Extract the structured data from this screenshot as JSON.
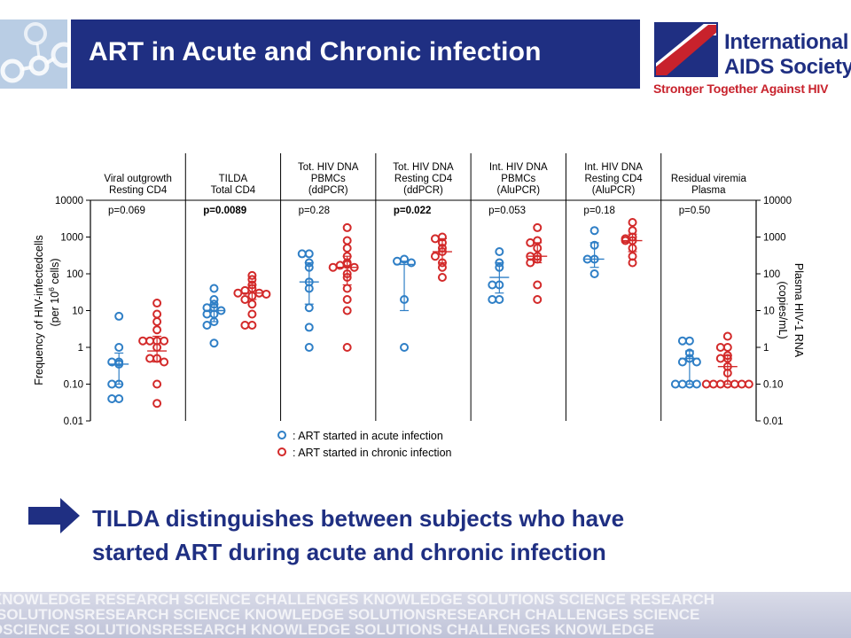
{
  "header": {
    "title": "ART in Acute and Chronic infection"
  },
  "logo": {
    "name_line1": "International",
    "name_line2": "AIDS Society",
    "tagline": "Stronger Together Against HIV",
    "colors": {
      "blue": "#1f2f82",
      "red": "#c8222c"
    }
  },
  "chart_data": {
    "type": "scatter",
    "y_scale": "log",
    "ylim": [
      0.01,
      10000
    ],
    "grid": false,
    "yticks": [
      "10000",
      "1000",
      "100",
      "10",
      "1",
      "0.10",
      "0.01"
    ],
    "ylabel_left_line1": "Frequency of HIV-infectedcells",
    "ylabel_left_line2_pre": "(per 10",
    "ylabel_left_line2_sup": "6",
    "ylabel_left_line2_post": " cells)",
    "ylabel_right_line1": "Plasma HIV-1 RNA",
    "ylabel_right_line2": "(copies/mL)",
    "series": [
      {
        "name": ": ART started in acute infection",
        "color": "#2f7fc6"
      },
      {
        "name": ": ART started in chronic infection",
        "color": "#d32a2a"
      }
    ],
    "panels": [
      {
        "header": [
          "Viral outgrowth",
          "Resting CD4"
        ],
        "p_value": "p=0.069",
        "p_bold": false,
        "acute": [
          7,
          1,
          0.4,
          0.35,
          0.1,
          0.1,
          0.04,
          0.04,
          0.4
        ],
        "acute_median": 0.35,
        "acute_iqr": [
          0.1,
          0.7
        ],
        "chronic": [
          16,
          8,
          5,
          3,
          1.5,
          1.5,
          1.5,
          1,
          0.5,
          0.5,
          0.4,
          0.1,
          0.03,
          1.5
        ],
        "chronic_median": 0.8,
        "chronic_iqr": [
          0.4,
          2
        ]
      },
      {
        "header": [
          "TILDA",
          "Total CD4"
        ],
        "p_value": "p=0.0089",
        "p_bold": true,
        "acute": [
          40,
          20,
          15,
          12,
          12,
          10,
          8,
          8,
          5,
          4,
          1.3
        ],
        "acute_median": 10,
        "acute_iqr": [
          5,
          15
        ],
        "chronic": [
          90,
          70,
          50,
          40,
          35,
          30,
          30,
          28,
          25,
          20,
          15,
          8,
          4,
          4
        ],
        "chronic_median": 30,
        "chronic_iqr": [
          20,
          50
        ]
      },
      {
        "header": [
          "Tot. HIV DNA",
          "PBMCs",
          "(ddPCR)"
        ],
        "p_value": "p=0.28",
        "p_bold": false,
        "acute": [
          350,
          350,
          200,
          150,
          60,
          40,
          12,
          3.5,
          1
        ],
        "acute_median": 60,
        "acute_iqr": [
          15,
          200
        ],
        "chronic": [
          1800,
          800,
          500,
          300,
          200,
          180,
          170,
          150,
          150,
          100,
          80,
          40,
          20,
          10,
          1
        ],
        "chronic_median": 150,
        "chronic_iqr": [
          50,
          300
        ]
      },
      {
        "header": [
          "Tot. HIV DNA",
          "Resting CD4",
          "(ddPCR)"
        ],
        "p_value": "p=0.022",
        "p_bold": true,
        "acute": [
          250,
          220,
          200,
          20,
          1
        ],
        "acute_median": 180,
        "acute_iqr": [
          10,
          220
        ],
        "chronic": [
          1000,
          900,
          700,
          500,
          400,
          300,
          200,
          150,
          80
        ],
        "chronic_median": 400,
        "chronic_iqr": [
          200,
          900
        ]
      },
      {
        "header": [
          "Int. HIV DNA",
          "PBMCs",
          "(AluPCR)"
        ],
        "p_value": "p=0.053",
        "p_bold": false,
        "acute": [
          400,
          200,
          150,
          50,
          50,
          20,
          20
        ],
        "acute_median": 80,
        "acute_iqr": [
          30,
          200
        ],
        "chronic": [
          1800,
          800,
          700,
          500,
          300,
          300,
          250,
          200,
          50,
          20
        ],
        "chronic_median": 300,
        "chronic_iqr": [
          200,
          700
        ]
      },
      {
        "header": [
          "Int. HIV DNA",
          "Resting CD4",
          "(AluPCR)"
        ],
        "p_value": "p=0.18",
        "p_bold": false,
        "acute": [
          1500,
          600,
          250,
          250,
          100
        ],
        "acute_median": 250,
        "acute_iqr": [
          150,
          700
        ],
        "chronic": [
          2500,
          1500,
          1000,
          900,
          800,
          800,
          500,
          300,
          200
        ],
        "chronic_median": 800,
        "chronic_iqr": [
          400,
          1200
        ]
      },
      {
        "header": [
          "Residual viremia",
          "Plasma"
        ],
        "p_value": "p=0.50",
        "p_bold": false,
        "acute": [
          1.5,
          1.5,
          0.7,
          0.5,
          0.4,
          0.4,
          0.1,
          0.1,
          0.1,
          0.1
        ],
        "acute_median": 0.5,
        "acute_iqr": [
          0.1,
          0.8
        ],
        "chronic": [
          2,
          1,
          1,
          0.6,
          0.5,
          0.5,
          0.3,
          0.2,
          0.1,
          0.1,
          0.1,
          0.1,
          0.1,
          0.1,
          0.1
        ],
        "chronic_median": 0.3,
        "chronic_iqr": [
          0.1,
          0.6
        ]
      }
    ]
  },
  "takeaway": {
    "line1": "TILDA distinguishes between subjects who have",
    "line2": "started ART during acute and chronic infection"
  },
  "footer": {
    "rows": [
      "KNOWLEDGE RESEARCH SCIENCE CHALLENGES KNOWLEDGE SOLUTIONS SCIENCE RESEARCH",
      "SOLUTIONSRESEARCH SCIENCE KNOWLEDGE SOLUTIONSRESEARCH CHALLENGES SCIENCE",
      "OSCIENCE SOLUTIONSRESEARCH KNOWLEDGE SOLUTIONS CHALLENGES KNOWLEDGE"
    ]
  }
}
